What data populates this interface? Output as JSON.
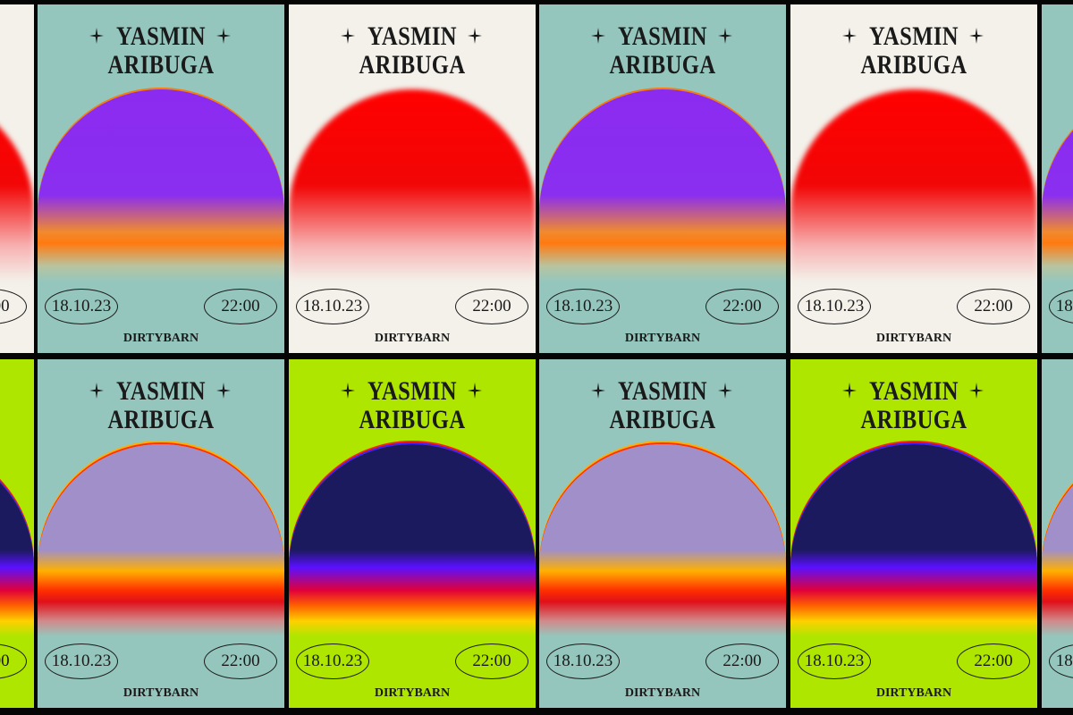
{
  "poster": {
    "title_lines": [
      "YASMIN",
      "ARIBUGA"
    ],
    "date": "18.10.23",
    "time": "22:00",
    "venue": "DIRTYBARN"
  }
}
